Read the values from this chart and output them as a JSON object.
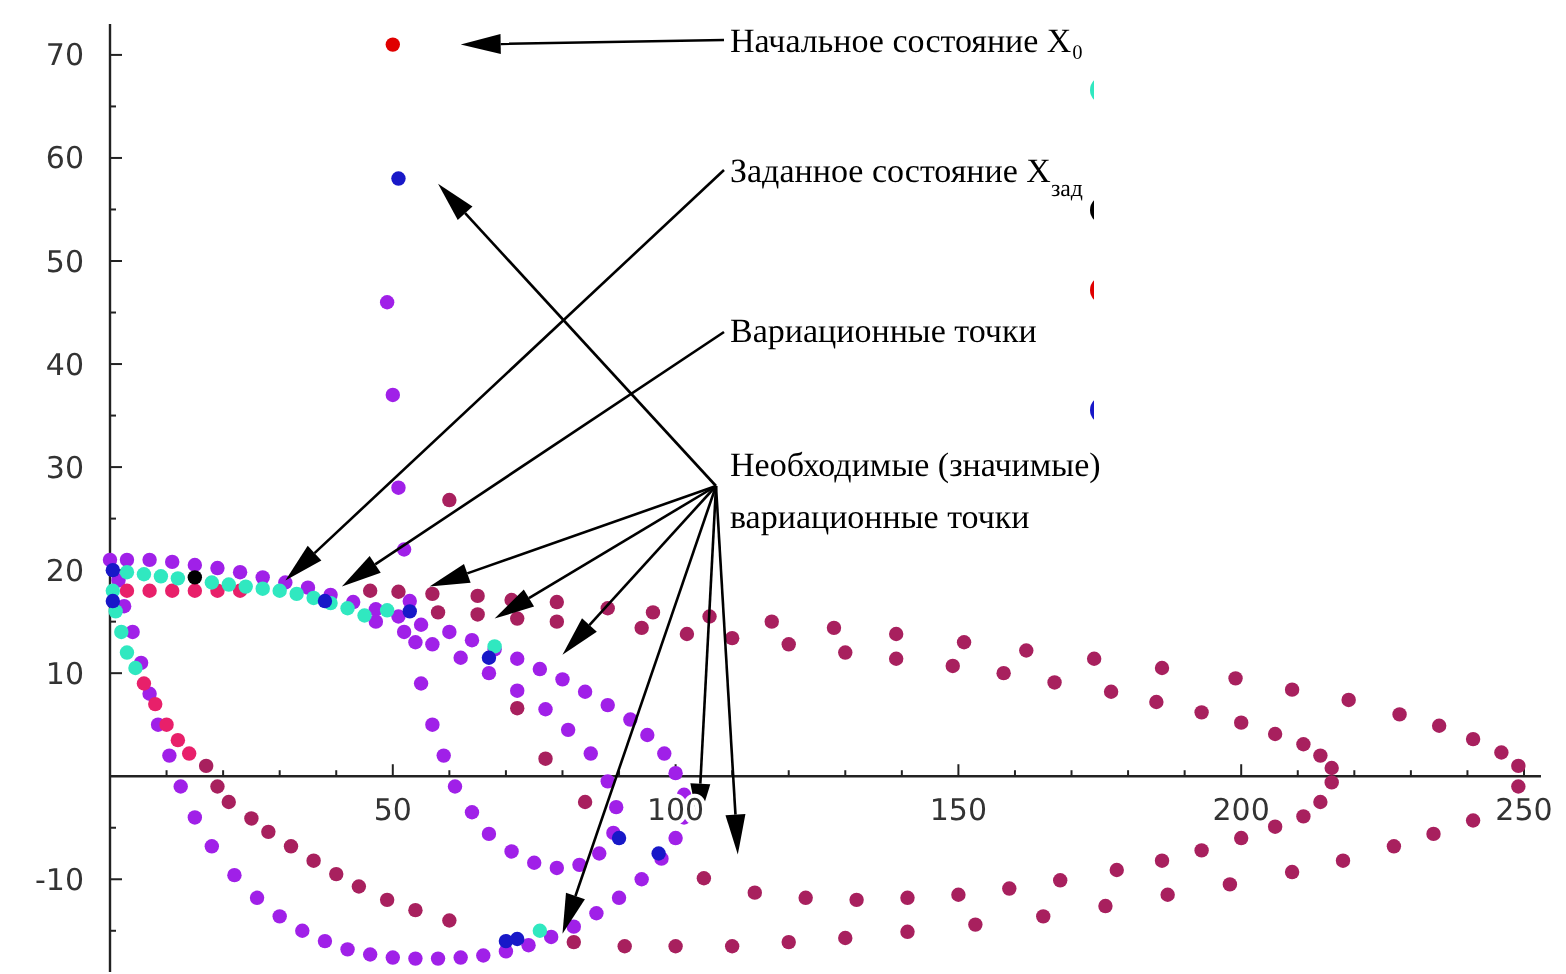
{
  "chart_data": {
    "type": "scatter",
    "marker": "circle",
    "xlim": [
      0,
      253
    ],
    "ylim": [
      -19,
      73
    ],
    "xticks": [
      {
        "value": 10,
        "label": null
      },
      {
        "value": 20,
        "label": null
      },
      {
        "value": 30,
        "label": null
      },
      {
        "value": 40,
        "label": null
      },
      50,
      {
        "value": 60,
        "label": null
      },
      {
        "value": 70,
        "label": null
      },
      {
        "value": 80,
        "label": null
      },
      {
        "value": 90,
        "label": null
      },
      100,
      {
        "value": 110,
        "label": null
      },
      {
        "value": 120,
        "label": null
      },
      {
        "value": 130,
        "label": null
      },
      {
        "value": 140,
        "label": null
      },
      150,
      {
        "value": 160,
        "label": null
      },
      {
        "value": 170,
        "label": null
      },
      {
        "value": 180,
        "label": null
      },
      {
        "value": 190,
        "label": null
      },
      200,
      {
        "value": 210,
        "label": null
      },
      {
        "value": 220,
        "label": null
      },
      {
        "value": 230,
        "label": null
      },
      {
        "value": 240,
        "label": null
      },
      250
    ],
    "yticks": [
      {
        "value": -15,
        "label": null
      },
      -10,
      {
        "value": -5,
        "label": null
      },
      10,
      {
        "value": 15,
        "label": null
      },
      20,
      {
        "value": 25,
        "label": null
      },
      30,
      {
        "value": 35,
        "label": null
      },
      40,
      {
        "value": 45,
        "label": null
      },
      50,
      {
        "value": 55,
        "label": null
      },
      60,
      {
        "value": 65,
        "label": null
      },
      70
    ],
    "annotations": [
      "Начальное состояние X₀",
      "Заданное состояние X$_{зад}$",
      "Вариационные точки",
      "Необходимые (значимые) вариационные точки"
    ],
    "series": [
      {
        "color": "#a8205e",
        "x": [
          46,
          51,
          57,
          65,
          71,
          79,
          88,
          96,
          106,
          58,
          65,
          72,
          79,
          94,
          102,
          110,
          117,
          128,
          139,
          151,
          162,
          174,
          186,
          199,
          209,
          219,
          228,
          235,
          241,
          246,
          249,
          120,
          130,
          139,
          149,
          158,
          167,
          177,
          185,
          193,
          200,
          206,
          211,
          214,
          216,
          216,
          214,
          211,
          206,
          200,
          193,
          186,
          178,
          168,
          159,
          150,
          141,
          132,
          123,
          114,
          105,
          249,
          241,
          234,
          227,
          218,
          209,
          198,
          187,
          176,
          165,
          153,
          141,
          130,
          120,
          110,
          100,
          91,
          82,
          60,
          54,
          49,
          44,
          40,
          36,
          32,
          28,
          25,
          21,
          19,
          17,
          84,
          77,
          72,
          60
        ],
        "values": [
          18,
          17.9,
          17.7,
          17.5,
          17.1,
          16.9,
          16.3,
          15.9,
          15.5,
          15.9,
          15.7,
          15.3,
          15,
          14.4,
          13.8,
          13.4,
          15,
          14.4,
          13.8,
          13,
          12.2,
          11.4,
          10.5,
          9.5,
          8.4,
          7.4,
          6,
          4.9,
          3.6,
          2.3,
          1,
          12.8,
          12,
          11.4,
          10.7,
          10,
          9.1,
          8.2,
          7.2,
          6.2,
          5.2,
          4.1,
          3.1,
          2,
          0.8,
          -0.6,
          -2.5,
          -3.9,
          -4.9,
          -6,
          -7.2,
          -8.2,
          -9.1,
          -10.1,
          -10.9,
          -11.5,
          -11.8,
          -12,
          -11.8,
          -11.3,
          -9.9,
          -1,
          -4.3,
          -5.6,
          -6.8,
          -8.2,
          -9.3,
          -10.5,
          -11.5,
          -12.6,
          -13.6,
          -14.4,
          -15.1,
          -15.7,
          -16.1,
          -16.5,
          -16.5,
          -16.5,
          -16.1,
          -14,
          -13,
          -12,
          -10.7,
          -9.5,
          -8.2,
          -6.8,
          -5.4,
          -4.1,
          -2.5,
          -1,
          1,
          -2.5,
          1.7,
          6.6,
          26.8
        ]
      },
      {
        "color": "#a020e8",
        "x": [
          0,
          3,
          7,
          11,
          15,
          19,
          23,
          27,
          31,
          35,
          39,
          43,
          47,
          51,
          55,
          60,
          64,
          68,
          72,
          76,
          80,
          84,
          88,
          92,
          95,
          98,
          100,
          101.5,
          101.5,
          100,
          97.5,
          94,
          90,
          86,
          82,
          78,
          74,
          70,
          66,
          62,
          58,
          54,
          50,
          46,
          42,
          38,
          34,
          30,
          26,
          22,
          18,
          15,
          12.5,
          10.5,
          8.5,
          7,
          5.5,
          4,
          2.5,
          1.5,
          47,
          52,
          57,
          62,
          67,
          72,
          77,
          81,
          85,
          88,
          89.5,
          89,
          86.5,
          83,
          79,
          75,
          71,
          67,
          64,
          61,
          59,
          57,
          55,
          54,
          53,
          52,
          51,
          50,
          49
        ],
        "values": [
          21,
          21,
          21,
          20.8,
          20.5,
          20.2,
          19.8,
          19.3,
          18.8,
          18.3,
          17.6,
          16.9,
          16.2,
          15.5,
          14.7,
          14,
          13.2,
          12.3,
          11.4,
          10.4,
          9.4,
          8.2,
          6.9,
          5.5,
          4,
          2.2,
          0.3,
          -1.8,
          -4,
          -6,
          -8,
          -10,
          -11.8,
          -13.3,
          -14.6,
          -15.6,
          -16.4,
          -17,
          -17.4,
          -17.6,
          -17.7,
          -17.7,
          -17.6,
          -17.3,
          -16.8,
          -16,
          -15,
          -13.6,
          -11.8,
          -9.6,
          -6.8,
          -4,
          -1,
          2,
          5,
          8,
          11,
          14,
          16.5,
          19,
          15,
          14,
          12.8,
          11.5,
          10,
          8.3,
          6.5,
          4.5,
          2.2,
          -0.5,
          -3,
          -5.5,
          -7.5,
          -8.6,
          -8.9,
          -8.4,
          -7.3,
          -5.6,
          -3.5,
          -1,
          2,
          5,
          9,
          13,
          17,
          22,
          28,
          37,
          46
        ]
      },
      {
        "color": "#e8206a",
        "x": [
          3,
          7,
          11,
          15,
          19,
          23,
          6,
          8,
          10,
          12,
          14
        ],
        "values": [
          18,
          18,
          18,
          18,
          18,
          18,
          9,
          7,
          5,
          3.5,
          2.2
        ]
      },
      {
        "color": "#30e8c0",
        "x": [
          3,
          6,
          9,
          12,
          18,
          21,
          24,
          27,
          30,
          33,
          36,
          39,
          42,
          45,
          49,
          68,
          76,
          0.5,
          1,
          2,
          3,
          4.5
        ],
        "values": [
          19.8,
          19.6,
          19.4,
          19.2,
          18.8,
          18.6,
          18.4,
          18.2,
          18,
          17.7,
          17.3,
          16.8,
          16.3,
          15.6,
          16.1,
          12.6,
          -15,
          18,
          16,
          14,
          12,
          10.5
        ]
      },
      {
        "color": "#1818c8",
        "x": [
          51,
          0.5,
          0.5,
          38,
          53,
          67,
          90,
          97,
          70,
          72
        ],
        "values": [
          58,
          20,
          17,
          17,
          16,
          11.5,
          -6,
          -7.5,
          -16,
          -15.8
        ]
      },
      {
        "color": "#000000",
        "x": [
          15
        ],
        "values": [
          19.3
        ]
      },
      {
        "color": "#e00000",
        "x": [
          50
        ],
        "values": [
          71
        ]
      }
    ]
  }
}
